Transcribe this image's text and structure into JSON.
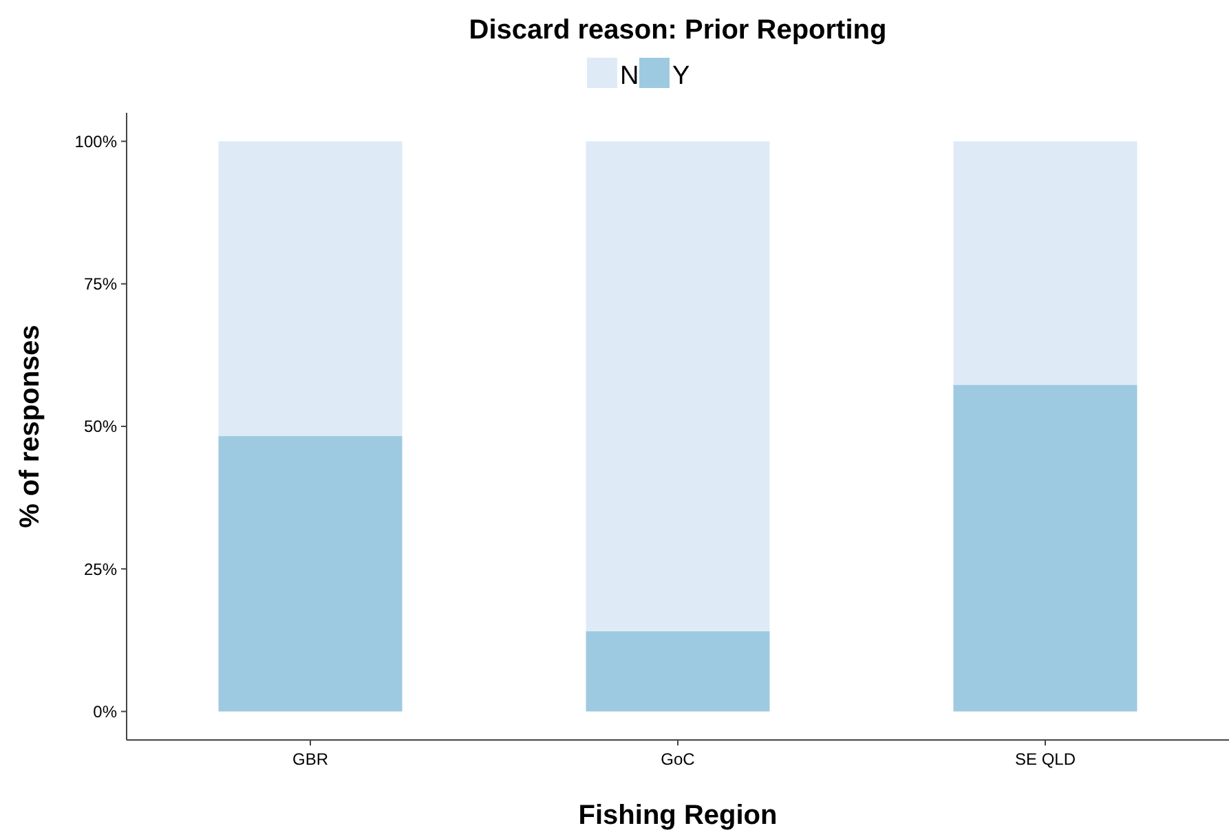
{
  "chart_data": {
    "type": "bar",
    "title": "Discard reason: Prior Reporting",
    "xlabel": "Fishing Region",
    "ylabel": "% of responses",
    "categories": [
      "GBR",
      "GoC",
      "SE QLD"
    ],
    "stacked": true,
    "legend": "top",
    "grid": false,
    "series": [
      {
        "name": "Y",
        "color": "#9ecae1",
        "values": [
          48.3,
          14.1,
          57.3
        ]
      },
      {
        "name": "N",
        "color": "#deebf7",
        "values": [
          51.7,
          85.9,
          42.7
        ]
      }
    ],
    "ylim": [
      -5,
      105
    ],
    "yticks": [
      {
        "value": 0,
        "label": "0%"
      },
      {
        "value": 25,
        "label": "25%"
      },
      {
        "value": 50,
        "label": "50%"
      },
      {
        "value": 75,
        "label": "75%"
      },
      {
        "value": 100,
        "label": "100%"
      }
    ]
  }
}
